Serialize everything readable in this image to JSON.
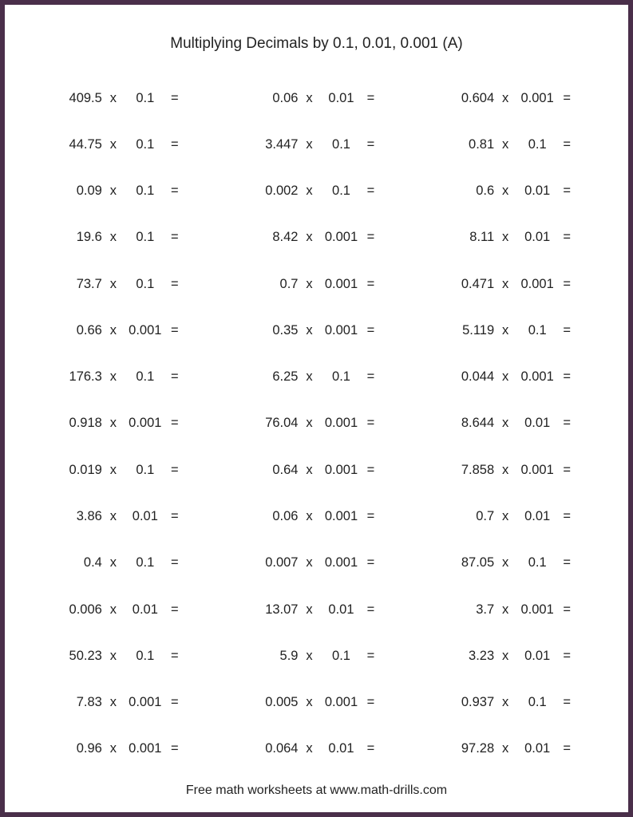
{
  "worksheet": {
    "title": "Multiplying Decimals by 0.1, 0.01, 0.001 (A)",
    "footer": "Free math worksheets at www.math-drills.com",
    "operator": "x",
    "equals": "=",
    "columns": 3,
    "rows": 15,
    "text_color": "#222222",
    "background_color": "#ffffff",
    "border_color": "#4a2f4a",
    "title_fontsize": 19,
    "problem_fontsize": 16.5,
    "footer_fontsize": 16,
    "problems": [
      {
        "a": "409.5",
        "b": "0.1"
      },
      {
        "a": "0.06",
        "b": "0.01"
      },
      {
        "a": "0.604",
        "b": "0.001"
      },
      {
        "a": "44.75",
        "b": "0.1"
      },
      {
        "a": "3.447",
        "b": "0.1"
      },
      {
        "a": "0.81",
        "b": "0.1"
      },
      {
        "a": "0.09",
        "b": "0.1"
      },
      {
        "a": "0.002",
        "b": "0.1"
      },
      {
        "a": "0.6",
        "b": "0.01"
      },
      {
        "a": "19.6",
        "b": "0.1"
      },
      {
        "a": "8.42",
        "b": "0.001"
      },
      {
        "a": "8.11",
        "b": "0.01"
      },
      {
        "a": "73.7",
        "b": "0.1"
      },
      {
        "a": "0.7",
        "b": "0.001"
      },
      {
        "a": "0.471",
        "b": "0.001"
      },
      {
        "a": "0.66",
        "b": "0.001"
      },
      {
        "a": "0.35",
        "b": "0.001"
      },
      {
        "a": "5.119",
        "b": "0.1"
      },
      {
        "a": "176.3",
        "b": "0.1"
      },
      {
        "a": "6.25",
        "b": "0.1"
      },
      {
        "a": "0.044",
        "b": "0.001"
      },
      {
        "a": "0.918",
        "b": "0.001"
      },
      {
        "a": "76.04",
        "b": "0.001"
      },
      {
        "a": "8.644",
        "b": "0.01"
      },
      {
        "a": "0.019",
        "b": "0.1"
      },
      {
        "a": "0.64",
        "b": "0.001"
      },
      {
        "a": "7.858",
        "b": "0.001"
      },
      {
        "a": "3.86",
        "b": "0.01"
      },
      {
        "a": "0.06",
        "b": "0.001"
      },
      {
        "a": "0.7",
        "b": "0.01"
      },
      {
        "a": "0.4",
        "b": "0.1"
      },
      {
        "a": "0.007",
        "b": "0.001"
      },
      {
        "a": "87.05",
        "b": "0.1"
      },
      {
        "a": "0.006",
        "b": "0.01"
      },
      {
        "a": "13.07",
        "b": "0.01"
      },
      {
        "a": "3.7",
        "b": "0.001"
      },
      {
        "a": "50.23",
        "b": "0.1"
      },
      {
        "a": "5.9",
        "b": "0.1"
      },
      {
        "a": "3.23",
        "b": "0.01"
      },
      {
        "a": "7.83",
        "b": "0.001"
      },
      {
        "a": "0.005",
        "b": "0.001"
      },
      {
        "a": "0.937",
        "b": "0.1"
      },
      {
        "a": "0.96",
        "b": "0.001"
      },
      {
        "a": "0.064",
        "b": "0.01"
      },
      {
        "a": "97.28",
        "b": "0.01"
      }
    ]
  }
}
